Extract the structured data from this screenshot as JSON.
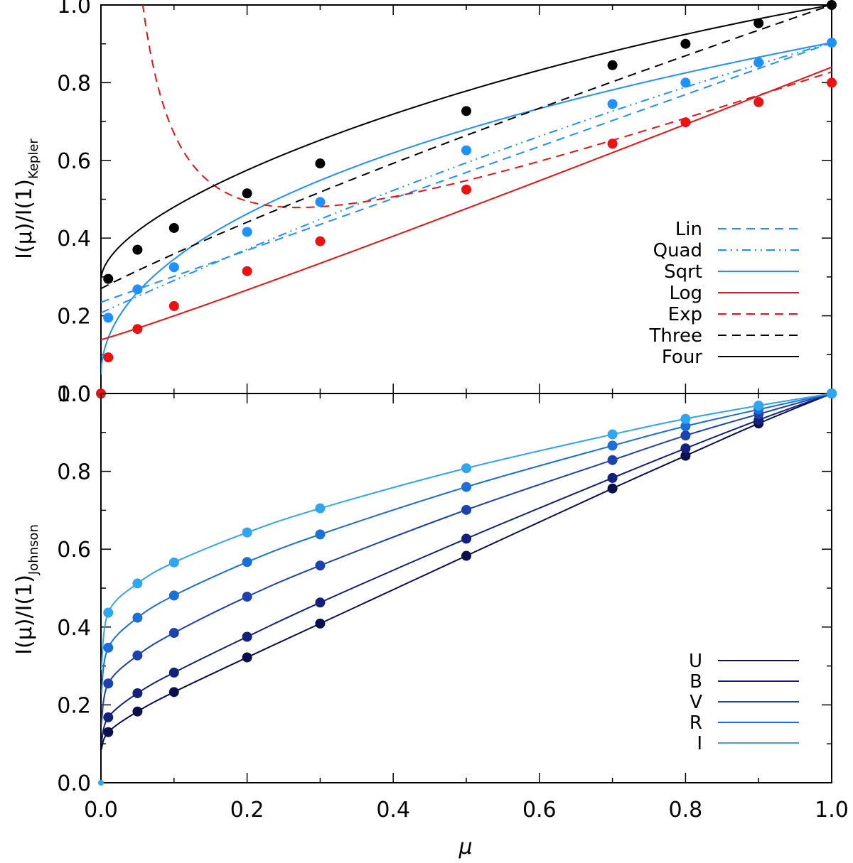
{
  "chart_data": [
    {
      "type": "line",
      "panel": "top",
      "ylabel": "I(μ)/I(1)",
      "ylabel_subscript": "Kepler",
      "xlim": [
        0,
        1
      ],
      "ylim": [
        0,
        1
      ],
      "yticks": [
        "0.0",
        "0.2",
        "0.4",
        "0.6",
        "0.8",
        "1.0"
      ],
      "points": [
        {
          "name": "black",
          "color": "#000000",
          "x": [
            0.01,
            0.05,
            0.1,
            0.2,
            0.3,
            0.5,
            0.7,
            0.8,
            0.9,
            1.0
          ],
          "y": [
            0.295,
            0.37,
            0.426,
            0.515,
            0.592,
            0.727,
            0.845,
            0.9,
            0.953,
            1.0
          ]
        },
        {
          "name": "blue",
          "color": "#1e90ff",
          "x": [
            0.01,
            0.05,
            0.1,
            0.2,
            0.3,
            0.5,
            0.7,
            0.8,
            0.9,
            1.0
          ],
          "y": [
            0.195,
            0.268,
            0.325,
            0.416,
            0.493,
            0.626,
            0.745,
            0.8,
            0.852,
            0.903
          ]
        },
        {
          "name": "red",
          "color": "#ee1111",
          "x": [
            0.0,
            0.01,
            0.05,
            0.1,
            0.2,
            0.3,
            0.5,
            0.7,
            0.8,
            0.9,
            1.0
          ],
          "y": [
            0.0,
            0.093,
            0.166,
            0.225,
            0.315,
            0.392,
            0.525,
            0.643,
            0.698,
            0.75,
            0.8
          ]
        }
      ],
      "series": [
        {
          "name": "Lin",
          "color": "#1e90ff",
          "dash": "dashed",
          "model": "lin",
          "coef": [
            0.74
          ],
          "scale": 0.903
        },
        {
          "name": "Quad",
          "color": "#1e90ff",
          "dash": "dashdotdot",
          "model": "quad",
          "coef": [
            0.6,
            0.17
          ],
          "scale": 0.903
        },
        {
          "name": "Sqrt",
          "color": "#1e90ff",
          "dash": "solid",
          "model": "sqrt",
          "coef": [
            -0.15,
            1.1
          ],
          "scale": 0.903
        },
        {
          "name": "Log",
          "color": "#ee1111",
          "dash": "solid",
          "model": "log",
          "coef": [
            0.835,
            -0.046
          ],
          "scale": 0.84
        },
        {
          "name": "Exp",
          "color": "#ee1111",
          "dash": "dashed",
          "model": "exp",
          "coef": [
            0.815,
            0.06
          ],
          "scale": 0.8
        },
        {
          "name": "Three",
          "color": "#000000",
          "dash": "dashed",
          "model": "four",
          "coef": [
            0.0,
            1.0,
            -0.37,
            0.1
          ],
          "scale": 1.0
        },
        {
          "name": "Four",
          "color": "#000000",
          "dash": "solid",
          "model": "four",
          "coef": [
            0.5,
            0.33,
            0.0,
            -0.12
          ],
          "scale": 1.0
        }
      ]
    },
    {
      "type": "line",
      "panel": "bottom",
      "xlabel": "μ",
      "ylabel": "I(μ)/I(1)",
      "ylabel_subscript": "Johnson",
      "xlim": [
        0,
        1
      ],
      "ylim": [
        0,
        1
      ],
      "xticks": [
        "0.0",
        "0.2",
        "0.4",
        "0.6",
        "0.8",
        "1.0"
      ],
      "yticks": [
        "0.0",
        "0.2",
        "0.4",
        "0.6",
        "0.8",
        "1.0"
      ],
      "x": [
        0.01,
        0.05,
        0.1,
        0.2,
        0.3,
        0.5,
        0.7,
        0.8,
        0.9,
        1.0
      ],
      "series": [
        {
          "name": "U",
          "color": "#0a0f4d",
          "y": [
            0.13,
            0.183,
            0.233,
            0.322,
            0.409,
            0.583,
            0.756,
            0.84,
            0.923,
            1.0
          ],
          "y0": 0.085
        },
        {
          "name": "B",
          "color": "#13207d",
          "y": [
            0.168,
            0.23,
            0.283,
            0.375,
            0.463,
            0.627,
            0.783,
            0.859,
            0.932,
            1.0
          ],
          "y0": 0.1
        },
        {
          "name": "V",
          "color": "#1d42b0",
          "y": [
            0.255,
            0.327,
            0.385,
            0.478,
            0.558,
            0.701,
            0.829,
            0.892,
            0.947,
            1.0
          ],
          "y0": 0.15
        },
        {
          "name": "R",
          "color": "#1a70d8",
          "y": [
            0.347,
            0.424,
            0.481,
            0.567,
            0.638,
            0.76,
            0.866,
            0.916,
            0.959,
            1.0
          ],
          "y0": 0.23
        },
        {
          "name": "I",
          "color": "#2ea6f2",
          "y": [
            0.437,
            0.512,
            0.566,
            0.643,
            0.705,
            0.808,
            0.895,
            0.935,
            0.969,
            1.0
          ],
          "y0": 0.29
        }
      ]
    }
  ]
}
